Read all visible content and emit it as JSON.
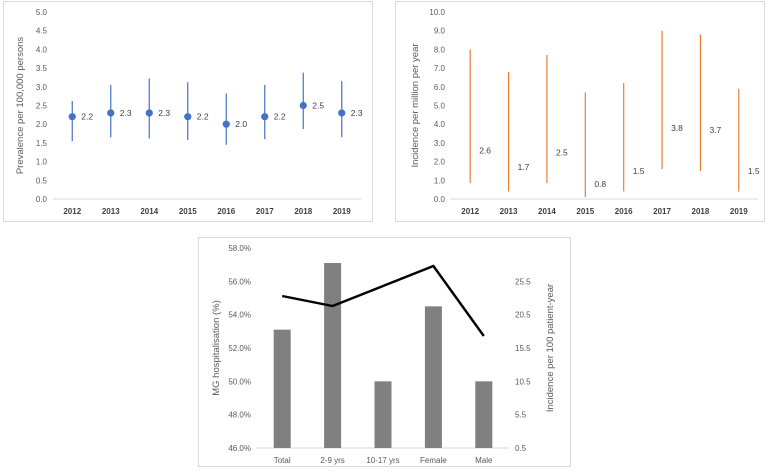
{
  "chart_data": [
    {
      "type": "scatter",
      "title": "",
      "xlabel": "",
      "ylabel": "Prevalence per 100,000 persons",
      "ylim": [
        0,
        5
      ],
      "ytick_labels": [
        "0.0",
        "0.5",
        "1.0",
        "1.5",
        "2.0",
        "2.5",
        "3.0",
        "3.5",
        "4.0",
        "4.5",
        "5.0"
      ],
      "categories": [
        "2012",
        "2013",
        "2014",
        "2015",
        "2016",
        "2017",
        "2018",
        "2019"
      ],
      "values": [
        2.2,
        2.3,
        2.3,
        2.2,
        2.0,
        2.2,
        2.5,
        2.3
      ],
      "labels": [
        "2.2",
        "2.3",
        "2.3",
        "2.2",
        "2.0",
        "2.2",
        "2.5",
        "2.3"
      ],
      "ci_lower": [
        1.55,
        1.65,
        1.62,
        1.58,
        1.45,
        1.6,
        1.87,
        1.65
      ],
      "ci_upper": [
        2.62,
        3.05,
        3.22,
        3.12,
        2.82,
        3.05,
        3.38,
        3.15
      ],
      "colors": {
        "point": "#4472c4",
        "errorbar": "#4472c4"
      }
    },
    {
      "type": "range",
      "title": "",
      "xlabel": "",
      "ylabel": "Incidence per million per year",
      "ylim": [
        0,
        10
      ],
      "ytick_labels": [
        "0.0",
        "1.0",
        "2.0",
        "3.0",
        "4.0",
        "5.0",
        "6.0",
        "7.0",
        "8.0",
        "9.0",
        "10.0"
      ],
      "categories": [
        "2012",
        "2013",
        "2014",
        "2015",
        "2016",
        "2017",
        "2018",
        "2019"
      ],
      "values": [
        2.6,
        1.7,
        2.5,
        0.8,
        1.5,
        3.8,
        3.7,
        1.5
      ],
      "labels": [
        "2.6",
        "1.7",
        "2.5",
        "0.8",
        "1.5",
        "3.8",
        "3.7",
        "1.5"
      ],
      "ci_lower": [
        0.85,
        0.4,
        0.85,
        0.1,
        0.4,
        1.6,
        1.5,
        0.4
      ],
      "ci_upper": [
        8.0,
        6.8,
        7.7,
        5.7,
        6.2,
        9.0,
        8.8,
        5.9
      ],
      "colors": {
        "errorbar": "#ed7d31"
      }
    },
    {
      "type": "bar+line",
      "title": "",
      "xlabel": "",
      "categories": [
        "Total",
        "2-9 yrs",
        "10-17 yrs",
        "Female",
        "Male"
      ],
      "series": [
        {
          "name": "MG hospitalisation (%)",
          "type": "bar",
          "axis": "left",
          "values": [
            53.1,
            57.1,
            50.0,
            54.5,
            50.0
          ]
        },
        {
          "name": "Incidence per 100 patient-year",
          "type": "line",
          "axis": "right",
          "values": [
            23.3,
            21.8,
            24.8,
            27.8,
            17.3
          ]
        }
      ],
      "ylabel": "MG hospitalisation (%)",
      "ylim": [
        46,
        58
      ],
      "ytick_labels": [
        "46.0%",
        "48.0%",
        "50.0%",
        "52.0%",
        "54.0%",
        "56.0%",
        "58.0%"
      ],
      "y2label": "Incidence per 100 patient-year",
      "y2lim": [
        0.5,
        30.5
      ],
      "y2tick_labels": [
        "0.5",
        "5.5",
        "10.5",
        "15.5",
        "20.5",
        "25.5"
      ],
      "colors": {
        "bar": "#808080",
        "line": "#000000"
      }
    }
  ]
}
